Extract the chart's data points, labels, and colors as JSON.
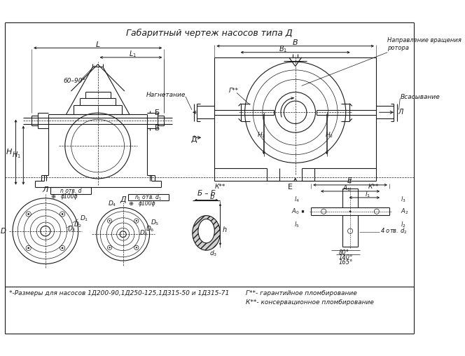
{
  "title": "Габаритный чертеж насосов типа Д",
  "bg_color": "#ffffff",
  "line_color": "#1a1a1a",
  "footnote1": "*-Размеры для насосов 1Д200-90,1Д250-125,1Д315-50 и 1Д315-71",
  "footnote2": "Г**- гарантийное пломбирование",
  "footnote3": "К**- консервационное пломбирование"
}
